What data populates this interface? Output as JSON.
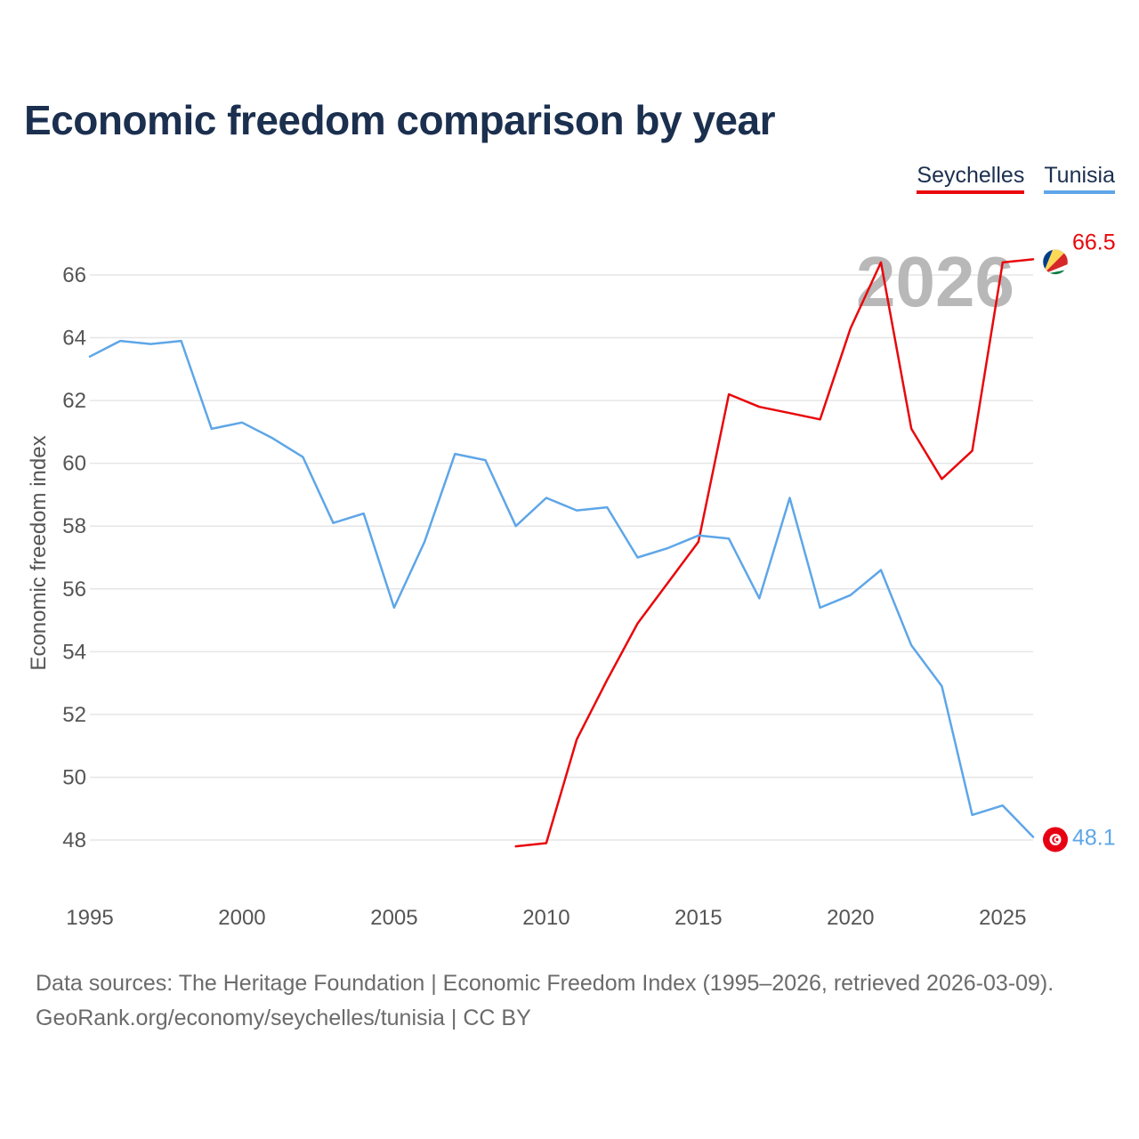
{
  "chart_data": {
    "type": "line",
    "title": "Economic freedom comparison by year",
    "xlabel": "",
    "ylabel": "Economic freedom index",
    "xlim": [
      1995,
      2026
    ],
    "ylim": [
      47,
      67
    ],
    "x_ticks": [
      1995,
      2000,
      2005,
      2010,
      2015,
      2020,
      2025
    ],
    "y_ticks": [
      48,
      50,
      52,
      54,
      56,
      58,
      60,
      62,
      64,
      66
    ],
    "grid": true,
    "legend_position": "top-right",
    "current_year_label": "2026",
    "series": [
      {
        "name": "Seychelles",
        "color": "#e8080c",
        "end_label": "66.5",
        "flag": "seychelles-flag",
        "x": [
          2009,
          2010,
          2011,
          2012,
          2013,
          2014,
          2015,
          2016,
          2017,
          2018,
          2019,
          2020,
          2021,
          2022,
          2023,
          2024,
          2025,
          2026
        ],
        "values": [
          47.8,
          47.9,
          51.2,
          53.1,
          54.9,
          56.2,
          57.5,
          62.2,
          61.8,
          61.6,
          61.4,
          64.3,
          66.4,
          61.1,
          59.5,
          60.4,
          66.4,
          66.5
        ]
      },
      {
        "name": "Tunisia",
        "color": "#5ea6e8",
        "end_label": "48.1",
        "flag": "tunisia-flag",
        "x": [
          1995,
          1996,
          1997,
          1998,
          1999,
          2000,
          2001,
          2002,
          2003,
          2004,
          2005,
          2006,
          2007,
          2008,
          2009,
          2010,
          2011,
          2012,
          2013,
          2014,
          2015,
          2016,
          2017,
          2018,
          2019,
          2020,
          2021,
          2022,
          2023,
          2024,
          2025,
          2026
        ],
        "values": [
          63.4,
          63.9,
          63.8,
          63.9,
          61.1,
          61.3,
          60.8,
          60.2,
          58.1,
          58.4,
          55.4,
          57.5,
          60.3,
          60.1,
          58.0,
          58.9,
          58.5,
          58.6,
          57.0,
          57.3,
          57.7,
          57.6,
          55.7,
          58.9,
          55.4,
          55.8,
          56.6,
          54.2,
          52.9,
          48.8,
          49.1,
          48.1
        ]
      }
    ]
  },
  "footer": {
    "line1": "Data sources: The Heritage Foundation | Economic Freedom Index (1995–2026, retrieved 2026-03-09).",
    "line2": "GeoRank.org/economy/seychelles/tunisia | CC BY"
  }
}
